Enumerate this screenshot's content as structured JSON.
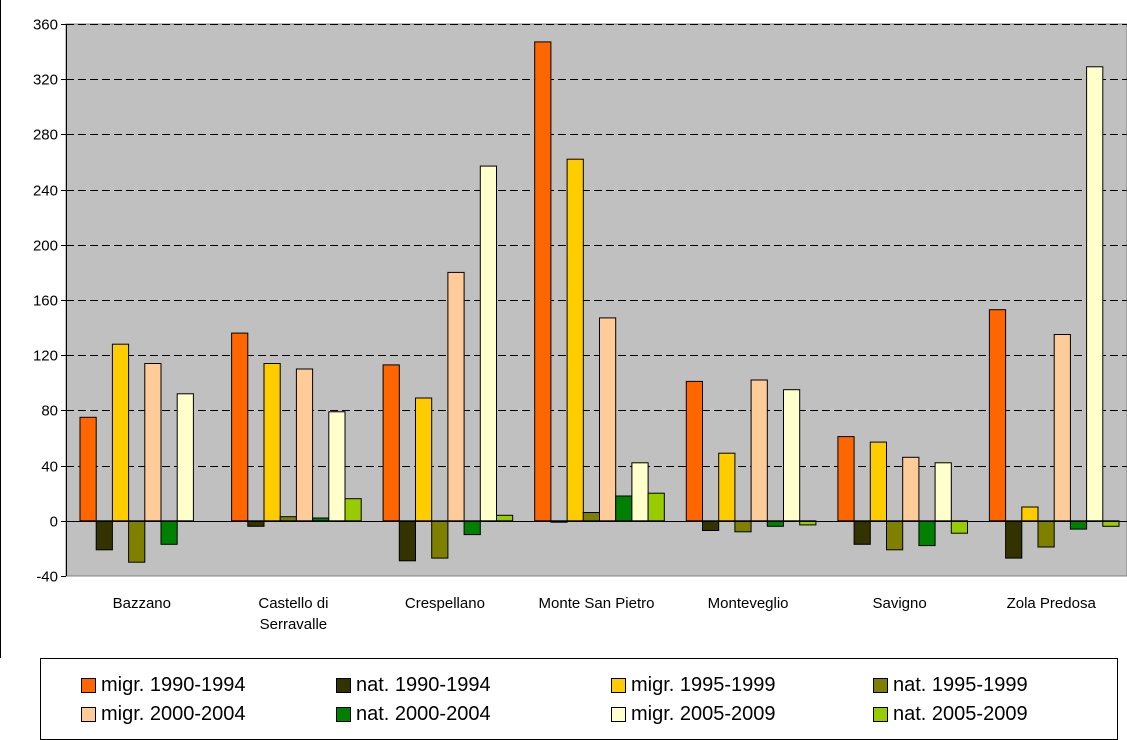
{
  "chart_data": {
    "type": "bar",
    "categories": [
      "Bazzano",
      "Castello di Serravalle",
      "Crespellano",
      "Monte San Pietro",
      "Monteveglio",
      "Savigno",
      "Zola Predosa"
    ],
    "category_lines": [
      [
        "Bazzano"
      ],
      [
        "Castello di",
        "Serravalle"
      ],
      [
        "Crespellano"
      ],
      [
        "Monte San Pietro"
      ],
      [
        "Monteveglio"
      ],
      [
        "Savigno"
      ],
      [
        "Zola Predosa"
      ]
    ],
    "series": [
      {
        "name": "migr. 1990-1994",
        "color": "#ff6600",
        "values": [
          75,
          136,
          113,
          347,
          101,
          61,
          153
        ]
      },
      {
        "name": "nat. 1990-1994",
        "color": "#333300",
        "values": [
          -21,
          -4,
          -29,
          -1,
          -7,
          -17,
          -27
        ]
      },
      {
        "name": "migr. 1995-1999",
        "color": "#ffcc00",
        "values": [
          128,
          114,
          89,
          262,
          49,
          57,
          10
        ]
      },
      {
        "name": "nat. 1995-1999",
        "color": "#808000",
        "values": [
          -30,
          3,
          -27,
          6,
          -8,
          -21,
          -19
        ]
      },
      {
        "name": "migr. 2000-2004",
        "color": "#ffcc99",
        "values": [
          114,
          110,
          180,
          147,
          102,
          46,
          135
        ]
      },
      {
        "name": "nat. 2000-2004",
        "color": "#008000",
        "values": [
          -17,
          2,
          -10,
          18,
          -4,
          -18,
          -6
        ]
      },
      {
        "name": "migr. 2005-2009",
        "color": "#ffffcc",
        "values": [
          92,
          79,
          257,
          42,
          95,
          42,
          329
        ]
      },
      {
        "name": "nat. 2005-2009",
        "color": "#99cc00",
        "values": [
          0,
          16,
          4,
          20,
          -3,
          -9,
          -4
        ]
      }
    ],
    "ylim": [
      -40,
      360
    ],
    "yticks": [
      360,
      320,
      280,
      240,
      200,
      160,
      120,
      80,
      40,
      0,
      -40
    ],
    "grid": true,
    "plot_background": "#c0c0c0",
    "legend_position": "bottom",
    "title": "",
    "xlabel": "",
    "ylabel": ""
  }
}
